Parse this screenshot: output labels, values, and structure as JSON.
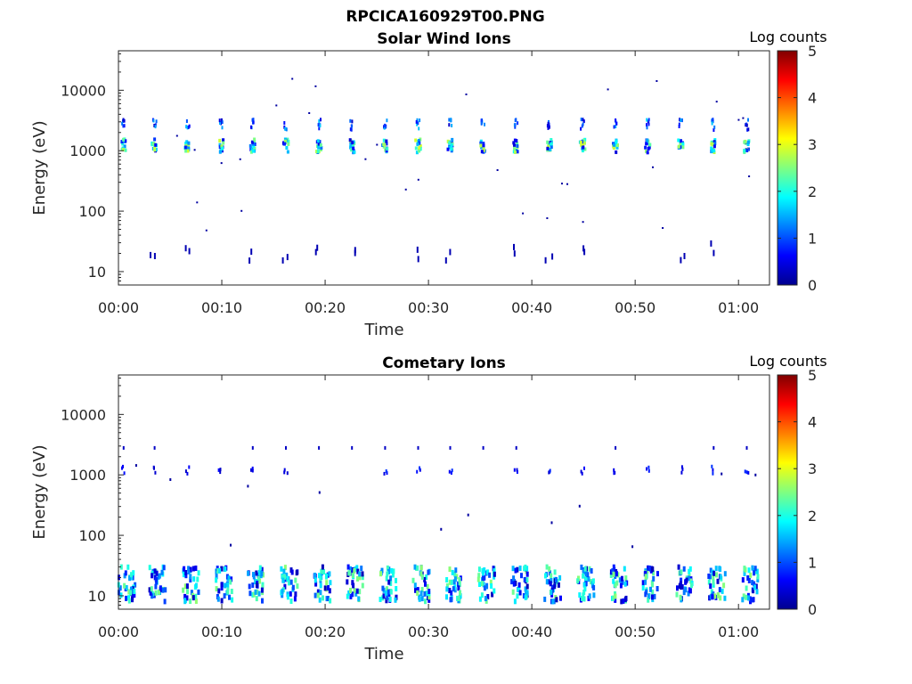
{
  "figure": {
    "title": "RPCICA160929T00.PNG"
  },
  "colorbar": {
    "label": "Log counts",
    "ticks": [
      "0",
      "1",
      "2",
      "3",
      "4",
      "5"
    ],
    "range": [
      0,
      5
    ],
    "colormap": "jet"
  },
  "chart_data": [
    {
      "type": "heatmap",
      "title": "Solar Wind Ions",
      "xlabel": "Time",
      "ylabel": "Energy (eV)",
      "yscale": "log",
      "ylim": [
        6,
        45000
      ],
      "xlim_minutes": [
        0,
        63
      ],
      "x_ticks": [
        "00:00",
        "00:10",
        "00:20",
        "00:30",
        "00:40",
        "00:50",
        "01:00"
      ],
      "x_tick_minutes": [
        0,
        10,
        20,
        30,
        40,
        50,
        60
      ],
      "y_ticks": [
        "10",
        "100",
        "1000",
        "10000"
      ],
      "y_tick_values": [
        10,
        100,
        1000,
        10000
      ],
      "sweep_times_minutes": [
        0.5,
        3.5,
        6.7,
        9.9,
        13.0,
        16.2,
        19.4,
        22.6,
        25.8,
        29.0,
        32.1,
        35.3,
        38.5,
        41.7,
        44.9,
        48.1,
        51.2,
        54.4,
        57.6,
        60.8
      ],
      "peak_energy_eV": 1200,
      "peak_log_counts": 2.6,
      "secondary_energy_eV": 2700,
      "low_energy_band_eV": 20
    },
    {
      "type": "heatmap",
      "title": "Cometary Ions",
      "xlabel": "Time",
      "ylabel": "Energy (eV)",
      "yscale": "log",
      "ylim": [
        6,
        45000
      ],
      "xlim_minutes": [
        0,
        63
      ],
      "x_ticks": [
        "00:00",
        "00:10",
        "00:20",
        "00:30",
        "00:40",
        "00:50",
        "01:00"
      ],
      "x_tick_minutes": [
        0,
        10,
        20,
        30,
        40,
        50,
        60
      ],
      "y_ticks": [
        "10",
        "100",
        "1000",
        "10000"
      ],
      "y_tick_values": [
        10,
        100,
        1000,
        10000
      ],
      "sweep_times_minutes": [
        0.5,
        3.5,
        6.7,
        9.9,
        13.0,
        16.2,
        19.4,
        22.6,
        25.8,
        29.0,
        32.1,
        35.3,
        38.5,
        41.7,
        44.9,
        48.1,
        51.2,
        54.4,
        57.6,
        60.8
      ],
      "band_energy_range_eV": [
        8,
        30
      ],
      "peak_log_counts": 2.4,
      "sparse_energy_eV": 1200
    }
  ]
}
